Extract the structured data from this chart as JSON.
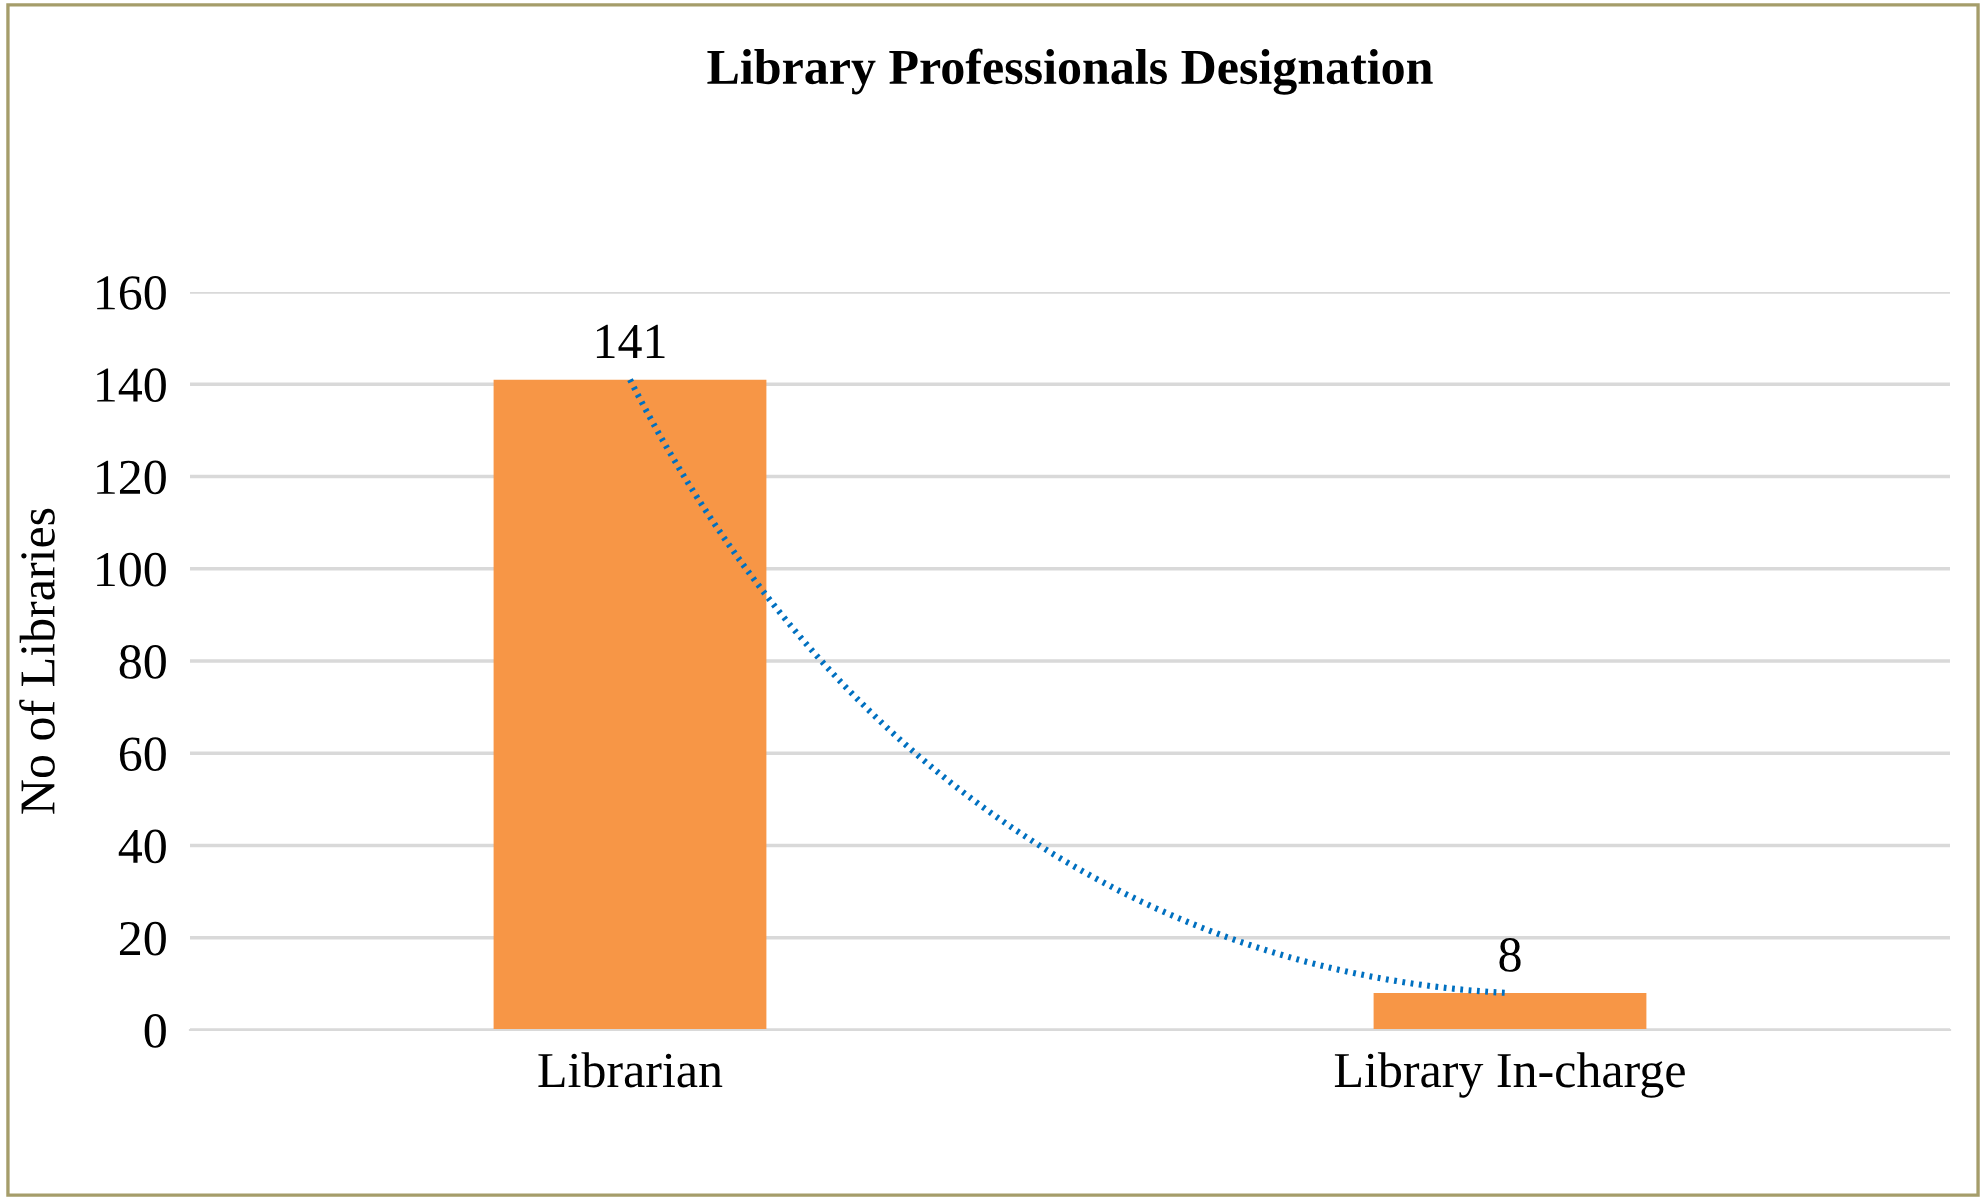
{
  "chart_data": {
    "type": "bar",
    "title": "Library Professionals Designation",
    "ylabel": "No of Libraries",
    "categories": [
      "Librarian",
      "Library In-charge"
    ],
    "series": [
      {
        "type": "bar",
        "color": "#f79646",
        "values": [
          141,
          8
        ],
        "data_labels": true
      },
      {
        "type": "line",
        "color": "#0070c0",
        "values": [
          141,
          8
        ],
        "line_style": "dotted",
        "marker": "none"
      }
    ],
    "ylim": [
      0,
      160
    ],
    "yticks": [
      0,
      20,
      40,
      60,
      80,
      100,
      120,
      140,
      160
    ],
    "grid": "y",
    "legend": false
  }
}
